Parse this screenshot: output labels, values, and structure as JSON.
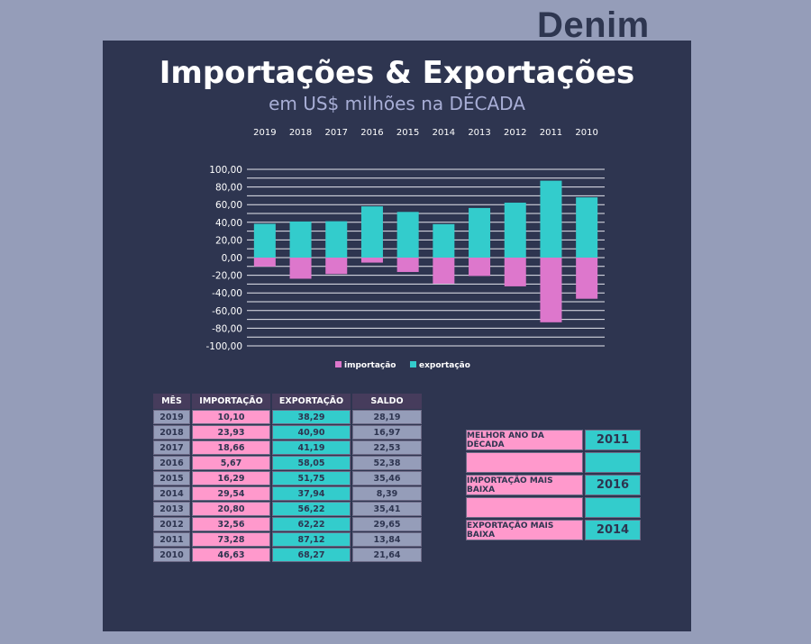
{
  "brand": "Denim",
  "title": "Importações & Exportações",
  "subtitle": "em US$ milhões na DÉCADA",
  "colors": {
    "importacao": "#dd77cc",
    "exportacao": "#33cccc",
    "panel": "#2e3550",
    "background": "#959db9"
  },
  "chart_data": {
    "type": "bar",
    "stacked": true,
    "categories": [
      "2019",
      "2018",
      "2017",
      "2016",
      "2015",
      "2014",
      "2013",
      "2012",
      "2011",
      "2010"
    ],
    "series": [
      {
        "name": "importação",
        "values": [
          -10.1,
          -23.93,
          -18.66,
          -5.67,
          -16.29,
          -29.54,
          -20.8,
          -32.56,
          -73.28,
          -46.63
        ]
      },
      {
        "name": "exportação",
        "values": [
          38.29,
          40.9,
          41.19,
          58.05,
          51.75,
          37.94,
          56.22,
          62.22,
          87.12,
          68.27
        ]
      }
    ],
    "yticks": [
      "100,00",
      "80,00",
      "60,00",
      "40,00",
      "20,00",
      "0,00",
      "-20,00",
      "-40,00",
      "-60,00",
      "-80,00",
      "-100,00"
    ],
    "ylim": [
      -100,
      100
    ],
    "grid": true,
    "legend": "bottom",
    "xaxis_position": "top"
  },
  "table": {
    "headers": [
      "MÊS",
      "IMPORTAÇÃO",
      "EXPORTAÇÃO",
      "SALDO"
    ],
    "rows": [
      [
        "2019",
        "10,10",
        "38,29",
        "28,19"
      ],
      [
        "2018",
        "23,93",
        "40,90",
        "16,97"
      ],
      [
        "2017",
        "18,66",
        "41,19",
        "22,53"
      ],
      [
        "2016",
        "5,67",
        "58,05",
        "52,38"
      ],
      [
        "2015",
        "16,29",
        "51,75",
        "35,46"
      ],
      [
        "2014",
        "29,54",
        "37,94",
        "8,39"
      ],
      [
        "2013",
        "20,80",
        "56,22",
        "35,41"
      ],
      [
        "2012",
        "32,56",
        "62,22",
        "29,65"
      ],
      [
        "2011",
        "73,28",
        "87,12",
        "13,84"
      ],
      [
        "2010",
        "46,63",
        "68,27",
        "21,64"
      ]
    ]
  },
  "summary": [
    {
      "label": "MELHOR ANO DA DÉCADA",
      "value": "2011"
    },
    {
      "label": "",
      "value": ""
    },
    {
      "label": "IMPORTAÇÃO MAIS BAIXA",
      "value": "2016"
    },
    {
      "label": "",
      "value": ""
    },
    {
      "label": "EXPORTAÇÃO MAIS BAIXA",
      "value": "2014"
    }
  ]
}
